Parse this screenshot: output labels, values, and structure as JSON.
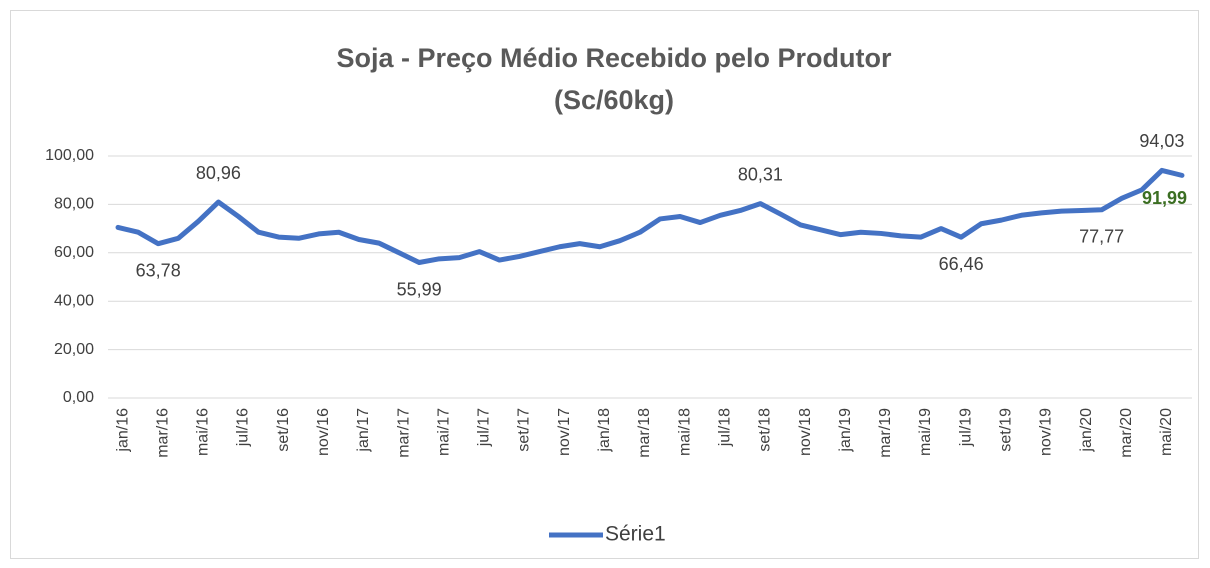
{
  "chart_data": {
    "type": "line",
    "title": [
      "Soja - Preço Médio Recebido pelo Produtor",
      "(Sc/60kg)"
    ],
    "categories": [
      "jan/16",
      null,
      "mar/16",
      null,
      "mai/16",
      null,
      "jul/16",
      null,
      "set/16",
      null,
      "nov/16",
      null,
      "jan/17",
      null,
      "mar/17",
      null,
      "mai/17",
      null,
      "jul/17",
      null,
      "set/17",
      null,
      "nov/17",
      null,
      "jan/18",
      null,
      "mar/18",
      null,
      "mai/18",
      null,
      "jul/18",
      null,
      "set/18",
      null,
      "nov/18",
      null,
      "jan/19",
      null,
      "mar/19",
      null,
      "mai/19",
      null,
      "jul/19",
      null,
      "set/19",
      null,
      "nov/19",
      null,
      "jan/20",
      null,
      "mar/20",
      null,
      "mai/20",
      null
    ],
    "series": [
      {
        "name": "Série1",
        "color": "#4472c4",
        "values": [
          70.5,
          68.5,
          63.78,
          66,
          73,
          80.96,
          75,
          68.5,
          66.5,
          66,
          67.8,
          68.5,
          65.5,
          64,
          60,
          55.99,
          57.5,
          58,
          60.5,
          57,
          58.5,
          60.5,
          62.5,
          63.8,
          62.5,
          65,
          68.5,
          74,
          75,
          72.5,
          75.5,
          77.5,
          80.31,
          76,
          71.5,
          69.5,
          67.5,
          68.5,
          68,
          67,
          66.5,
          70,
          66.46,
          72,
          73.5,
          75.5,
          76.5,
          77.2,
          77.5,
          77.77,
          82.5,
          86,
          94.03,
          91.99
        ],
        "value_labels": [
          null,
          null,
          "63,78",
          null,
          null,
          "80,96",
          null,
          null,
          null,
          null,
          null,
          null,
          null,
          null,
          null,
          "55,99",
          null,
          null,
          null,
          null,
          null,
          null,
          null,
          null,
          null,
          null,
          null,
          null,
          null,
          null,
          null,
          null,
          "80,31",
          null,
          null,
          null,
          null,
          null,
          null,
          null,
          null,
          null,
          "66,46",
          null,
          null,
          null,
          null,
          null,
          null,
          "77,77",
          null,
          null,
          "94,03",
          "91,99"
        ],
        "highlight_label_color": "#3b6e22"
      }
    ],
    "ylim": [
      0,
      100
    ],
    "yticks": [
      {
        "value": 0,
        "label": "0,00"
      },
      {
        "value": 20,
        "label": "20,00"
      },
      {
        "value": 40,
        "label": "40,00"
      },
      {
        "value": 60,
        "label": "60,00"
      },
      {
        "value": 80,
        "label": "80,00"
      },
      {
        "value": 100,
        "label": "100,00"
      }
    ],
    "grid": true,
    "legend": "bottom"
  }
}
